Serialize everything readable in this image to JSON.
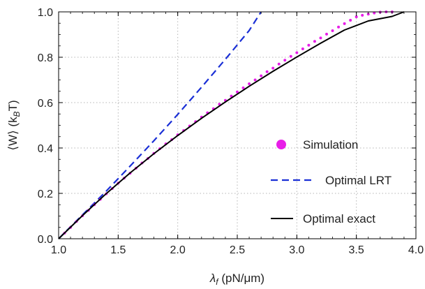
{
  "chart_data": {
    "type": "line",
    "xlabel_main": "λ",
    "xlabel_sub": "f",
    "xlabel_rest": " (pN/μm)",
    "ylabel_main": "⟨W⟩ (k",
    "ylabel_sub": "B",
    "ylabel_rest": "T)",
    "xlim": [
      1.0,
      4.0
    ],
    "ylim": [
      0.0,
      1.0
    ],
    "x_ticks": [
      {
        "value": 1.0,
        "label": "1.0"
      },
      {
        "value": 1.5,
        "label": "1.5"
      },
      {
        "value": 2.0,
        "label": "2.0"
      },
      {
        "value": 2.5,
        "label": "2.5"
      },
      {
        "value": 3.0,
        "label": "3.0"
      },
      {
        "value": 3.5,
        "label": "3.5"
      },
      {
        "value": 4.0,
        "label": "4.0"
      }
    ],
    "y_ticks": [
      {
        "value": 0.0,
        "label": "0.0"
      },
      {
        "value": 0.2,
        "label": "0.2"
      },
      {
        "value": 0.4,
        "label": "0.4"
      },
      {
        "value": 0.6,
        "label": "0.6"
      },
      {
        "value": 0.8,
        "label": "0.8"
      },
      {
        "value": 1.0,
        "label": "1.0"
      }
    ],
    "grid": true,
    "legend_position": "right",
    "series": [
      {
        "name": "Simulation",
        "style": "scatter",
        "color": "#e81ee8",
        "x": [
          1.05,
          1.1,
          1.15,
          1.2,
          1.25,
          1.3,
          1.35,
          1.4,
          1.45,
          1.5,
          1.55,
          1.6,
          1.65,
          1.7,
          1.75,
          1.8,
          1.85,
          1.9,
          1.95,
          2.0,
          2.05,
          2.1,
          2.15,
          2.2,
          2.25,
          2.3,
          2.35,
          2.4,
          2.45,
          2.5,
          2.55,
          2.6,
          2.65,
          2.7,
          2.75,
          2.8,
          2.85,
          2.9,
          2.95,
          3.0,
          3.05,
          3.1,
          3.15,
          3.2,
          3.25,
          3.3,
          3.35,
          3.4,
          3.45,
          3.5,
          3.55,
          3.6,
          3.65,
          3.7,
          3.75,
          3.8
        ],
        "y": [
          0.025,
          0.05,
          0.076,
          0.101,
          0.125,
          0.15,
          0.174,
          0.198,
          0.221,
          0.245,
          0.267,
          0.289,
          0.311,
          0.334,
          0.354,
          0.376,
          0.397,
          0.418,
          0.437,
          0.458,
          0.477,
          0.497,
          0.516,
          0.536,
          0.555,
          0.573,
          0.593,
          0.61,
          0.629,
          0.647,
          0.665,
          0.683,
          0.7,
          0.718,
          0.736,
          0.752,
          0.77,
          0.787,
          0.804,
          0.82,
          0.837,
          0.853,
          0.87,
          0.885,
          0.902,
          0.917,
          0.933,
          0.948,
          0.963,
          0.978,
          0.985,
          0.99,
          0.995,
          0.999,
          1.0,
          1.0
        ]
      },
      {
        "name": "Optimal LRT",
        "style": "dashed",
        "color": "#1a2fd6",
        "x": [
          1.0,
          1.2,
          1.4,
          1.6,
          1.8,
          2.0,
          2.2,
          2.4,
          2.6,
          2.7
        ],
        "y": [
          0.0,
          0.105,
          0.21,
          0.32,
          0.432,
          0.548,
          0.668,
          0.791,
          0.918,
          1.0
        ]
      },
      {
        "name": "Optimal exact",
        "style": "solid",
        "color": "#000000",
        "x": [
          1.0,
          1.2,
          1.4,
          1.6,
          1.8,
          2.0,
          2.2,
          2.4,
          2.6,
          2.8,
          3.0,
          3.2,
          3.4,
          3.6,
          3.8,
          3.9
        ],
        "y": [
          0.0,
          0.102,
          0.199,
          0.29,
          0.375,
          0.455,
          0.531,
          0.603,
          0.672,
          0.738,
          0.801,
          0.862,
          0.92,
          0.96,
          0.98,
          1.0
        ]
      }
    ]
  }
}
